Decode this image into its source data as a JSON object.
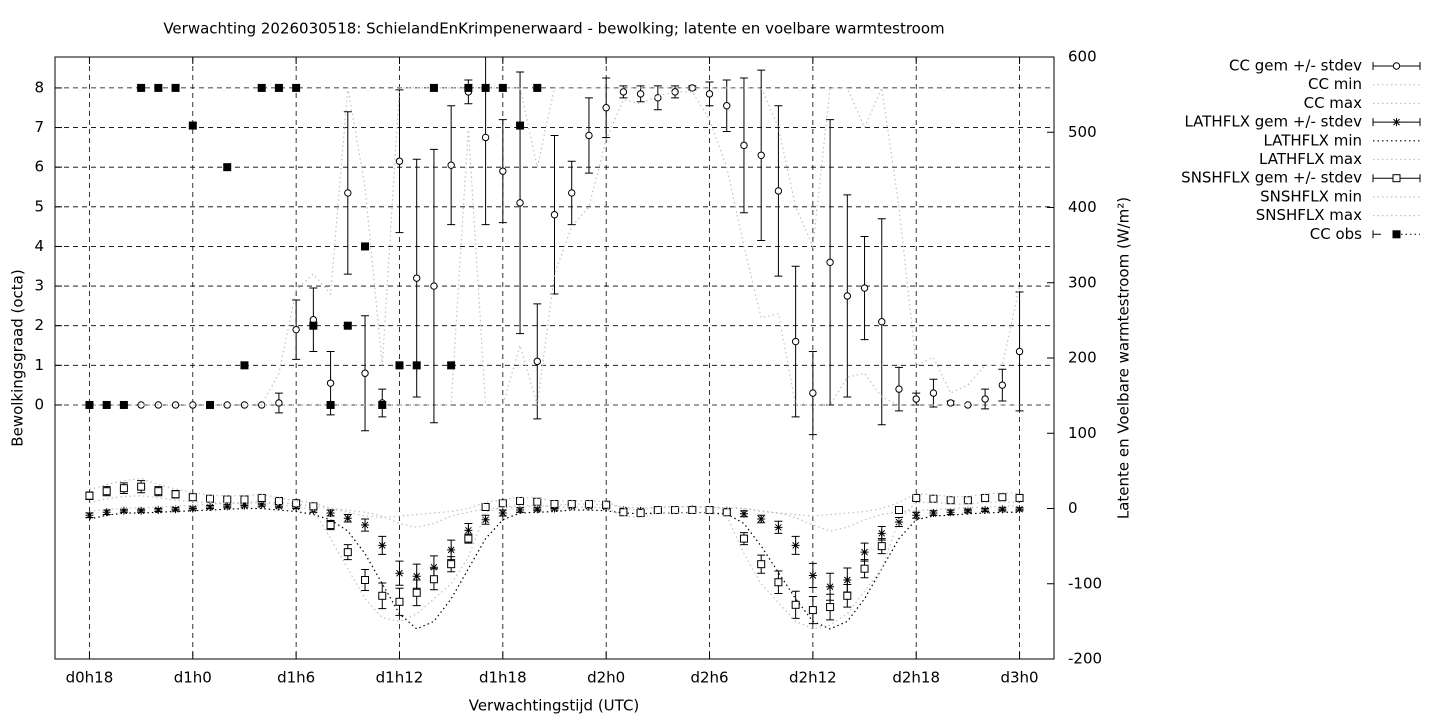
{
  "chart_data": {
    "type": "errorbar-line",
    "title": "Verwachting 2026030518: SchielandEnKrimpenerwaard - bewolking; latente en voelbare warmtestroom",
    "x_label": "Verwachtingstijd (UTC)",
    "y_label": "Bewolkingsgraad (octa)",
    "y2_label": "Latente en Voelbare warmtestroom (W/m²)",
    "x": [
      18,
      19,
      20,
      21,
      22,
      23,
      24,
      25,
      26,
      27,
      28,
      29,
      30,
      31,
      32,
      33,
      34,
      35,
      36,
      37,
      38,
      39,
      40,
      41,
      42,
      43,
      44,
      45,
      46,
      47,
      48,
      49,
      50,
      51,
      52,
      53,
      54,
      55,
      56,
      57,
      58,
      59,
      60,
      61,
      62,
      63,
      64,
      65,
      66,
      67,
      68,
      69,
      70,
      71,
      72
    ],
    "xlim": [
      16,
      74
    ],
    "xticks": [
      {
        "value": 18,
        "label": "d0h18"
      },
      {
        "value": 24,
        "label": "d1h0"
      },
      {
        "value": 30,
        "label": "d1h6"
      },
      {
        "value": 36,
        "label": "d1h12"
      },
      {
        "value": 42,
        "label": "d1h18"
      },
      {
        "value": 48,
        "label": "d2h0"
      },
      {
        "value": 54,
        "label": "d2h6"
      },
      {
        "value": 60,
        "label": "d2h12"
      },
      {
        "value": 66,
        "label": "d2h18"
      },
      {
        "value": 72,
        "label": "d3h0"
      }
    ],
    "ylim": [
      -6.41,
      8.78
    ],
    "yticks": [
      0,
      1,
      2,
      3,
      4,
      5,
      6,
      7,
      8
    ],
    "y2lim": [
      -200,
      600
    ],
    "y2ticks": [
      -200,
      -100,
      0,
      100,
      200,
      300,
      400,
      500,
      600
    ],
    "grid": true,
    "legend": "outside-right",
    "series": [
      {
        "name": "CC gem +/- stdev",
        "color": "#000000",
        "style": "errorbars",
        "marker": "circle",
        "axis": "y",
        "values": [
          0,
          0,
          0,
          0,
          0,
          0,
          0,
          0,
          0,
          0,
          0,
          0.05,
          1.9,
          2.15,
          0.55,
          5.35,
          0.8,
          0.05,
          6.15,
          3.2,
          3.0,
          6.05,
          7.9,
          6.75,
          5.9,
          5.1,
          1.1,
          4.8,
          5.35,
          6.8,
          7.5,
          7.9,
          7.85,
          7.75,
          7.9,
          8.0,
          7.85,
          7.55,
          6.55,
          6.3,
          5.4,
          1.6,
          0.3,
          3.6,
          2.75,
          2.95,
          2.1,
          0.4,
          0.15,
          0.3,
          0.05,
          0,
          0.15,
          0.5,
          1.35
        ],
        "error": [
          0,
          0,
          0,
          0,
          0,
          0,
          0,
          0,
          0,
          0,
          0,
          0.25,
          0.75,
          0.8,
          0.8,
          2.05,
          1.45,
          0.35,
          1.8,
          3.0,
          3.45,
          1.5,
          0.3,
          2.2,
          1.3,
          3.3,
          1.45,
          2.0,
          0.8,
          0.95,
          0.75,
          0.15,
          0.2,
          0.3,
          0.15,
          0.05,
          0.3,
          0.65,
          1.7,
          2.15,
          2.15,
          1.9,
          1.05,
          3.6,
          2.55,
          1.3,
          2.6,
          0.55,
          0.15,
          0.35,
          0.05,
          0,
          0.25,
          0.4,
          1.5
        ]
      },
      {
        "name": "CC min",
        "color": "#c0c0c0",
        "style": "dotted",
        "axis": "y",
        "values": [
          0,
          0,
          0,
          0,
          0,
          0,
          0,
          0,
          0,
          0,
          0,
          0,
          0,
          0,
          0,
          0,
          0,
          0,
          0,
          0,
          0,
          0,
          7.0,
          0,
          0,
          1.5,
          0,
          3.3,
          4.5,
          5.0,
          6.7,
          7.7,
          7.6,
          7.8,
          7.9,
          7.9,
          7.2,
          6.0,
          4.0,
          2.2,
          2.3,
          0,
          0,
          0,
          0.7,
          0.8,
          0.2,
          0,
          0,
          0,
          0,
          0,
          0,
          0,
          0
        ]
      },
      {
        "name": "CC max",
        "color": "#c0c0c0",
        "style": "dotted",
        "axis": "y",
        "values": [
          0,
          0,
          0,
          0,
          0,
          0,
          0,
          0,
          0,
          0,
          0,
          0.8,
          2.9,
          3.3,
          2.8,
          8,
          5.5,
          1.0,
          8,
          8,
          8,
          8,
          8,
          8,
          8,
          8,
          6,
          8,
          8,
          8,
          8,
          8,
          8,
          8,
          8,
          8,
          8,
          8,
          8,
          8,
          7,
          5,
          4,
          8,
          8,
          7,
          8,
          5,
          1,
          1.2,
          0.3,
          0.5,
          1,
          1,
          3
        ]
      },
      {
        "name": "LATHFLX gem +/- stdev",
        "color": "#000000",
        "style": "errorbars",
        "marker": "star",
        "axis": "y2",
        "values": [
          -9,
          -5,
          -3,
          -3,
          -2,
          -1,
          0,
          2,
          3,
          4,
          5,
          3,
          2,
          -2,
          -6,
          -13,
          -22,
          -49,
          -86,
          -90,
          -78,
          -55,
          -29,
          -15,
          -6,
          -2,
          -1,
          0,
          3,
          3,
          2,
          -2,
          -3,
          -2,
          -2,
          -1,
          -2,
          -3,
          -7,
          -14,
          -25,
          -49,
          -89,
          -104,
          -95,
          -58,
          -33,
          -18,
          -9,
          -6,
          -5,
          -3,
          -2,
          -1,
          -1
        ],
        "error": [
          3,
          3,
          2,
          2,
          2,
          2,
          2,
          2,
          2,
          2,
          2,
          2,
          2,
          3,
          4,
          5,
          8,
          12,
          16,
          16,
          15,
          13,
          9,
          6,
          4,
          3,
          2,
          2,
          2,
          2,
          2,
          2,
          2,
          2,
          2,
          2,
          2,
          3,
          4,
          5,
          8,
          12,
          16,
          18,
          16,
          12,
          9,
          6,
          4,
          3,
          3,
          2,
          2,
          2,
          2
        ]
      },
      {
        "name": "LATHFLX min",
        "color": "#000000",
        "style": "dotted",
        "axis": "y2",
        "values": [
          -14,
          -9,
          -6,
          -6,
          -5,
          -4,
          -3,
          -2,
          -1,
          0,
          0,
          -2,
          -4,
          -8,
          -15,
          -30,
          -60,
          -100,
          -140,
          -160,
          -150,
          -120,
          -80,
          -40,
          -15,
          -6,
          -5,
          -4,
          -2,
          -2,
          -3,
          -6,
          -7,
          -6,
          -6,
          -5,
          -6,
          -7,
          -20,
          -50,
          -85,
          -120,
          -150,
          -160,
          -150,
          -120,
          -80,
          -40,
          -15,
          -10,
          -9,
          -7,
          -6,
          -5,
          -5
        ]
      },
      {
        "name": "LATHFLX max",
        "color": "#c0c0c0",
        "style": "dotted",
        "axis": "y2",
        "values": [
          -4,
          -1,
          0,
          1,
          2,
          3,
          4,
          6,
          7,
          8,
          9,
          8,
          6,
          3,
          0,
          -2,
          -5,
          -10,
          -20,
          -25,
          -20,
          -10,
          -5,
          0,
          1,
          2,
          3,
          4,
          6,
          6,
          5,
          2,
          1,
          2,
          2,
          3,
          2,
          1,
          0,
          -3,
          -6,
          -12,
          -22,
          -30,
          -25,
          -15,
          -8,
          -4,
          -3,
          -1,
          0,
          1,
          2,
          3,
          3
        ]
      },
      {
        "name": "SNSHFLX gem +/- stdev",
        "color": "#000000",
        "style": "errorbars",
        "marker": "square",
        "axis": "y2",
        "values": [
          17,
          23,
          27,
          29,
          23,
          19,
          15,
          13,
          12,
          12,
          14,
          10,
          7,
          3,
          -22,
          -58,
          -95,
          -116,
          -124,
          -112,
          -94,
          -74,
          -40,
          2,
          7,
          10,
          9,
          6,
          6,
          6,
          5,
          -5,
          -6,
          -2,
          -2,
          -2,
          -2,
          -5,
          -40,
          -74,
          -98,
          -128,
          -135,
          -131,
          -116,
          -80,
          -50,
          -2,
          14,
          13,
          11,
          11,
          14,
          15,
          14
        ],
        "error": [
          5,
          6,
          7,
          8,
          6,
          5,
          4,
          3,
          3,
          3,
          3,
          3,
          3,
          3,
          6,
          10,
          14,
          17,
          18,
          17,
          14,
          10,
          6,
          4,
          3,
          3,
          3,
          3,
          3,
          3,
          3,
          4,
          3,
          3,
          3,
          3,
          3,
          3,
          8,
          12,
          15,
          18,
          18,
          17,
          15,
          12,
          10,
          4,
          3,
          3,
          3,
          3,
          3,
          3,
          4
        ]
      },
      {
        "name": "SNSHFLX min",
        "color": "#c0c0c0",
        "style": "dotted",
        "axis": "y2",
        "values": [
          8,
          13,
          16,
          17,
          14,
          11,
          9,
          8,
          7,
          7,
          8,
          5,
          3,
          -2,
          -40,
          -80,
          -120,
          -145,
          -150,
          -140,
          -120,
          -100,
          -65,
          -5,
          2,
          4,
          4,
          2,
          2,
          2,
          1,
          -10,
          -12,
          -6,
          -6,
          -6,
          -6,
          -10,
          -60,
          -100,
          -125,
          -150,
          -160,
          -155,
          -140,
          -110,
          -80,
          -15,
          8,
          8,
          6,
          6,
          8,
          9,
          8
        ]
      },
      {
        "name": "SNSHFLX max",
        "color": "#c0c0c0",
        "style": "dotted",
        "axis": "y2",
        "values": [
          25,
          32,
          37,
          40,
          32,
          26,
          21,
          18,
          17,
          17,
          19,
          14,
          10,
          8,
          0,
          -5,
          -10,
          -12,
          -10,
          -8,
          -6,
          -4,
          0,
          8,
          12,
          15,
          14,
          10,
          10,
          10,
          9,
          0,
          -2,
          2,
          2,
          2,
          2,
          0,
          0,
          -4,
          -6,
          -8,
          -10,
          -8,
          -6,
          -4,
          0,
          8,
          20,
          18,
          16,
          16,
          19,
          21,
          20
        ]
      },
      {
        "name": "CC obs",
        "color": "#000000",
        "style": "points",
        "marker": "filled-square",
        "axis": "y",
        "values": [
          0,
          0,
          0,
          8,
          8,
          8,
          7.05,
          0,
          6,
          1,
          8,
          8,
          8,
          2,
          0,
          2,
          4,
          0,
          1,
          1,
          8,
          1,
          8,
          8,
          8,
          7.05,
          8,
          null,
          null,
          null,
          null,
          null,
          null,
          null,
          null,
          null,
          null,
          null,
          null,
          null,
          null,
          null,
          null,
          null,
          null,
          null,
          null,
          null,
          null,
          null,
          null,
          null,
          null,
          null,
          null
        ]
      }
    ]
  }
}
